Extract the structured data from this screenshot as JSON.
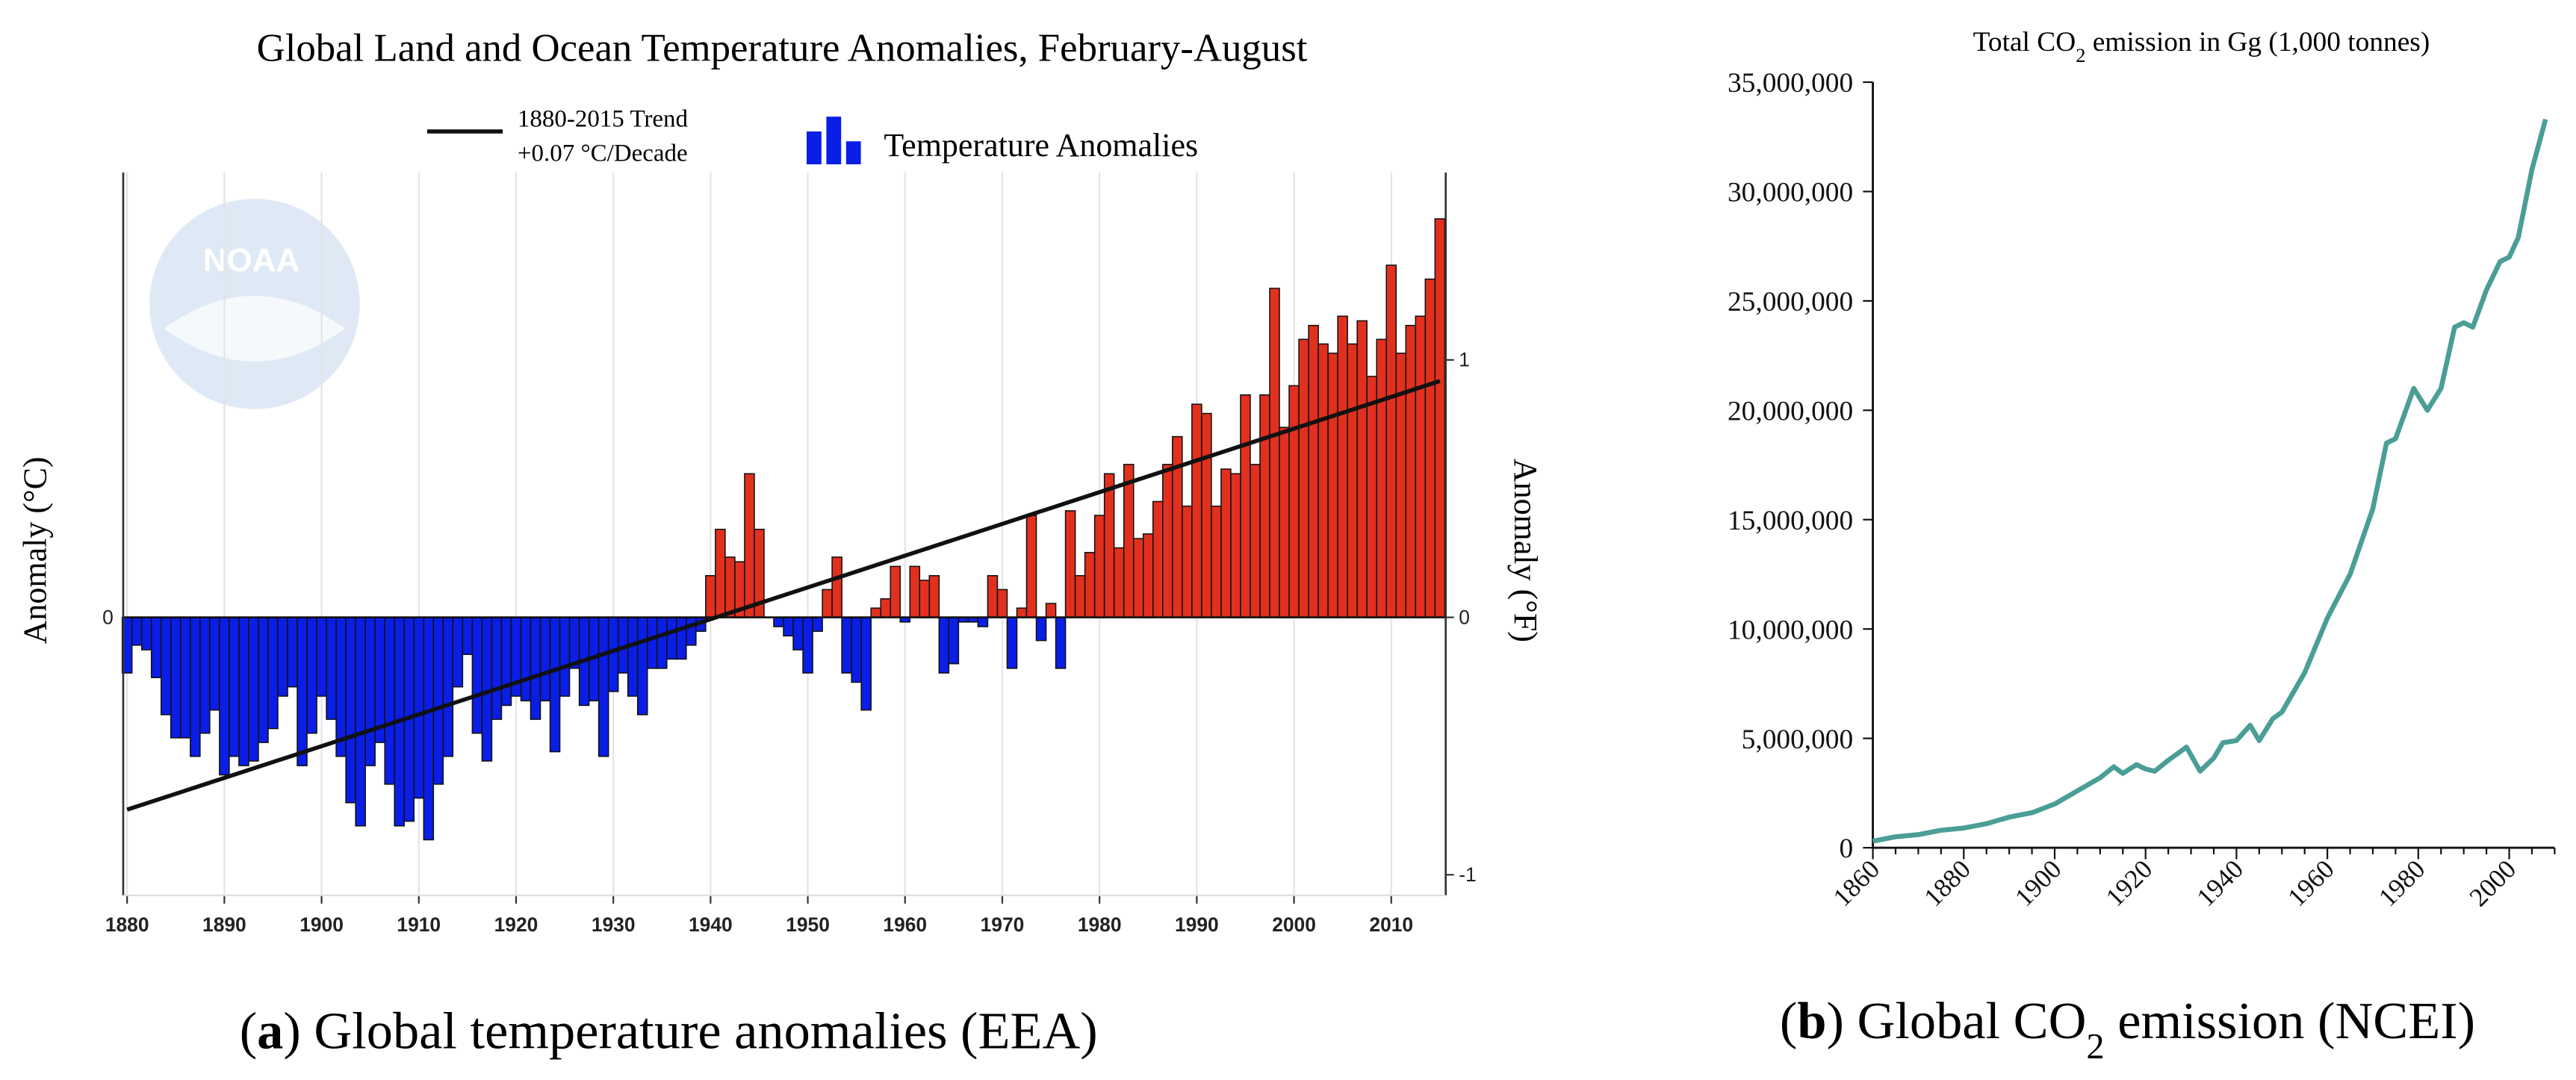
{
  "chart_data": [
    {
      "type": "bar",
      "title": "Global Land and Ocean Temperature Anomalies, February-August",
      "ylabel": "Anomaly (°C)",
      "y2label": "Anomaly (°F)",
      "watermark": "NOAA",
      "annotation": "+0.07 °C/Decade",
      "caption": [
        "(",
        "a",
        ") Global temperature anomalies (EEA)"
      ],
      "x": [
        1880,
        1881,
        1882,
        1883,
        1884,
        1885,
        1886,
        1887,
        1888,
        1889,
        1890,
        1891,
        1892,
        1893,
        1894,
        1895,
        1896,
        1897,
        1898,
        1899,
        1900,
        1901,
        1902,
        1903,
        1904,
        1905,
        1906,
        1907,
        1908,
        1909,
        1910,
        1911,
        1912,
        1913,
        1914,
        1915,
        1916,
        1917,
        1918,
        1919,
        1920,
        1921,
        1922,
        1923,
        1924,
        1925,
        1926,
        1927,
        1928,
        1929,
        1930,
        1931,
        1932,
        1933,
        1934,
        1935,
        1936,
        1937,
        1938,
        1939,
        1940,
        1941,
        1942,
        1943,
        1944,
        1945,
        1946,
        1947,
        1948,
        1949,
        1950,
        1951,
        1952,
        1953,
        1954,
        1955,
        1956,
        1957,
        1958,
        1959,
        1960,
        1961,
        1962,
        1963,
        1964,
        1965,
        1966,
        1967,
        1968,
        1969,
        1970,
        1971,
        1972,
        1973,
        1974,
        1975,
        1976,
        1977,
        1978,
        1979,
        1980,
        1981,
        1982,
        1983,
        1984,
        1985,
        1986,
        1987,
        1988,
        1989,
        1990,
        1991,
        1992,
        1993,
        1994,
        1995,
        1996,
        1997,
        1998,
        1999,
        2000,
        2001,
        2002,
        2003,
        2004,
        2005,
        2006,
        2007,
        2008,
        2009,
        2010,
        2011,
        2012,
        2013,
        2014,
        2015
      ],
      "series": [
        {
          "name": "Temperature Anomalies",
          "color": "#0a1ee6",
          "positive_color": "#e2301e",
          "values": [
            -0.12,
            -0.06,
            -0.07,
            -0.13,
            -0.21,
            -0.26,
            -0.26,
            -0.3,
            -0.25,
            -0.2,
            -0.34,
            -0.3,
            -0.32,
            -0.31,
            -0.27,
            -0.24,
            -0.17,
            -0.15,
            -0.32,
            -0.25,
            -0.17,
            -0.22,
            -0.3,
            -0.4,
            -0.45,
            -0.32,
            -0.27,
            -0.36,
            -0.45,
            -0.44,
            -0.39,
            -0.48,
            -0.36,
            -0.3,
            -0.15,
            -0.08,
            -0.25,
            -0.31,
            -0.22,
            -0.19,
            -0.17,
            -0.18,
            -0.22,
            -0.18,
            -0.29,
            -0.17,
            -0.11,
            -0.19,
            -0.18,
            -0.3,
            -0.16,
            -0.12,
            -0.17,
            -0.21,
            -0.11,
            -0.11,
            -0.09,
            -0.09,
            -0.06,
            -0.03,
            0.09,
            0.19,
            0.13,
            0.12,
            0.31,
            0.19,
            0.0,
            -0.02,
            -0.04,
            -0.07,
            -0.12,
            -0.03,
            0.06,
            0.13,
            -0.12,
            -0.14,
            -0.2,
            0.02,
            0.04,
            0.11,
            -0.01,
            0.11,
            0.08,
            0.09,
            -0.12,
            -0.1,
            -0.01,
            -0.01,
            -0.02,
            0.09,
            0.06,
            -0.11,
            0.02,
            0.22,
            -0.05,
            0.03,
            -0.11,
            0.23,
            0.09,
            0.14,
            0.22,
            0.31,
            0.15,
            0.33,
            0.17,
            0.18,
            0.25,
            0.33,
            0.39,
            0.24,
            0.46,
            0.44,
            0.24,
            0.32,
            0.31,
            0.48,
            0.33,
            0.48,
            0.71,
            0.41,
            0.5,
            0.6,
            0.63,
            0.59,
            0.57,
            0.65,
            0.59,
            0.64,
            0.52,
            0.6,
            0.76,
            0.57,
            0.63,
            0.65,
            0.73,
            0.86
          ]
        },
        {
          "name": "1880-2015 Trend",
          "type": "line",
          "color": "#111111",
          "x": [
            1880,
            2015
          ],
          "values": [
            -0.415,
            0.51
          ]
        }
      ],
      "xlim": [
        1879.6,
        2015.6
      ],
      "xticks": [
        1880,
        1890,
        1900,
        1910,
        1920,
        1930,
        1940,
        1950,
        1960,
        1970,
        1980,
        1990,
        2000,
        2010
      ],
      "ylim": [
        -0.6,
        0.96
      ],
      "yticks": [
        0
      ],
      "y2lim": [
        -1.08,
        1.728
      ],
      "y2ticks": [
        -1,
        0,
        1
      ],
      "grid": true
    },
    {
      "type": "line",
      "title": [
        "Total CO",
        "2",
        " emission in Gg (1,000 tonnes)"
      ],
      "caption": [
        "(",
        "b",
        ") Global CO",
        "2",
        " emission (NCEI)"
      ],
      "color": "#4a9e96",
      "x": [
        1860,
        1865,
        1870,
        1875,
        1880,
        1885,
        1890,
        1895,
        1900,
        1905,
        1910,
        1913,
        1915,
        1918,
        1920,
        1922,
        1925,
        1929,
        1932,
        1935,
        1937,
        1940,
        1943,
        1945,
        1948,
        1950,
        1955,
        1960,
        1965,
        1970,
        1973,
        1975,
        1979,
        1982,
        1985,
        1988,
        1990,
        1992,
        1995,
        1998,
        2000,
        2002,
        2005,
        2008
      ],
      "values": [
        300000,
        500000,
        600000,
        800000,
        900000,
        1100000,
        1400000,
        1600000,
        2000000,
        2600000,
        3200000,
        3700000,
        3400000,
        3800000,
        3600000,
        3500000,
        4000000,
        4600000,
        3500000,
        4100000,
        4800000,
        4900000,
        5600000,
        4900000,
        5900000,
        6200000,
        8000000,
        10500000,
        12500000,
        15500000,
        18500000,
        18700000,
        21000000,
        20000000,
        21000000,
        23800000,
        24000000,
        23800000,
        25500000,
        26800000,
        27000000,
        27900000,
        31000000,
        33300000
      ],
      "xlim": [
        1860,
        2010
      ],
      "xticks": [
        1860,
        1880,
        1900,
        1920,
        1940,
        1960,
        1980,
        2000
      ],
      "xticks_minor": [
        1865,
        1870,
        1875,
        1885,
        1890,
        1895,
        1905,
        1910,
        1915,
        1925,
        1930,
        1935,
        1945,
        1950,
        1955,
        1965,
        1970,
        1975,
        1985,
        1990,
        1995,
        2005,
        2010
      ],
      "ylim": [
        0,
        35000000
      ],
      "yticks": [
        0,
        {
          "value": 5000000,
          "label": "5,000,000"
        },
        {
          "value": 10000000,
          "label": "10,000,000"
        },
        {
          "value": 15000000,
          "label": "15,000,000"
        },
        {
          "value": 20000000,
          "label": "20,000,000"
        },
        {
          "value": 25000000,
          "label": "25,000,000"
        },
        {
          "value": 30000000,
          "label": "30,000,000"
        },
        {
          "value": 35000000,
          "label": "35,000,000"
        }
      ]
    }
  ]
}
